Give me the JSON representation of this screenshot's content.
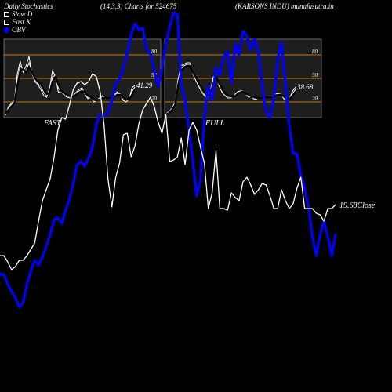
{
  "header": {
    "left": "Daily Stochastics",
    "center": "(14,3,3) Charts for 524675",
    "right": "(KARSONS INDU) munafasutra.in"
  },
  "legend": [
    {
      "label": "Slow  D",
      "marker": "box",
      "color": "#ffffff"
    },
    {
      "label": "Fast K",
      "marker": "box",
      "color": "#ffffff"
    },
    {
      "label": "OBV",
      "marker": "dot",
      "color": "#0000ff"
    }
  ],
  "colors": {
    "bg": "#000000",
    "panel": "#1e1e1e",
    "grid": "#c87800",
    "line": "#ffffff",
    "obv": "#0000ff"
  },
  "chart_data": [
    {
      "type": "line",
      "title": "FAST",
      "ylim": [
        0,
        100
      ],
      "y_ticks": [
        "80",
        "50",
        "20"
      ],
      "last_value_label": "41.29",
      "series": [
        {
          "values": [
            3,
            14,
            18,
            22,
            55,
            72,
            58,
            66,
            78,
            56,
            46,
            42,
            36,
            28,
            26,
            38,
            60,
            52,
            32,
            34,
            28,
            26,
            25,
            28,
            32,
            36,
            38,
            30,
            24,
            26,
            20,
            22,
            25,
            28,
            24,
            26,
            25,
            29,
            33,
            30,
            22,
            20,
            23,
            38,
            41
          ]
        },
        {
          "values": [
            4,
            12,
            16,
            20,
            48,
            66,
            62,
            60,
            70,
            58,
            48,
            44,
            40,
            32,
            28,
            34,
            52,
            54,
            38,
            32,
            30,
            28,
            26,
            27,
            30,
            34,
            36,
            32,
            26,
            25,
            22,
            22,
            24,
            26,
            25,
            25,
            26,
            28,
            31,
            30,
            25,
            22,
            23,
            33,
            39
          ]
        },
        {
          "values": [
            5,
            10,
            14,
            18,
            40,
            60,
            62,
            58,
            64,
            58,
            50,
            46,
            42,
            36,
            30,
            32,
            46,
            52,
            42,
            34,
            31,
            29,
            27,
            27,
            29,
            32,
            34,
            32,
            28,
            26,
            23,
            22,
            23,
            25,
            25,
            25,
            26,
            27,
            29,
            29,
            26,
            23,
            23,
            29,
            36
          ]
        }
      ]
    },
    {
      "type": "line",
      "title": "FULL",
      "ylim": [
        0,
        100
      ],
      "y_ticks": [
        "80",
        "50",
        "20"
      ],
      "last_value_label": "38.68",
      "series": [
        {
          "values": [
            5,
            8,
            12,
            20,
            48,
            66,
            68,
            70,
            70,
            56,
            48,
            40,
            33,
            28,
            24,
            34,
            52,
            54,
            40,
            32,
            28,
            25,
            25,
            28,
            32,
            34,
            34,
            31,
            26,
            27,
            23,
            24,
            26,
            26,
            26,
            27,
            27,
            30,
            31,
            30,
            24,
            22,
            25,
            34,
            39
          ]
        },
        {
          "values": [
            4,
            7,
            11,
            18,
            44,
            62,
            66,
            68,
            68,
            58,
            50,
            42,
            36,
            30,
            26,
            32,
            48,
            54,
            42,
            34,
            30,
            27,
            26,
            27,
            30,
            33,
            34,
            31,
            28,
            27,
            25,
            24,
            25,
            26,
            26,
            26,
            27,
            29,
            30,
            30,
            26,
            23,
            24,
            31,
            36
          ]
        },
        {
          "values": [
            4,
            6,
            10,
            16,
            40,
            58,
            64,
            66,
            66,
            58,
            52,
            44,
            38,
            32,
            28,
            30,
            44,
            52,
            44,
            36,
            31,
            28,
            27,
            27,
            29,
            32,
            33,
            31,
            29,
            27,
            26,
            25,
            25,
            26,
            26,
            26,
            26,
            28,
            29,
            29,
            27,
            24,
            24,
            28,
            33
          ]
        }
      ]
    },
    {
      "type": "line",
      "series": [
        {
          "name": "OBV",
          "color": "#0000ff",
          "values": [
            56,
            56,
            44,
            34,
            26,
            14,
            20,
            44,
            60,
            74,
            68,
            78,
            92,
            106,
            126,
            128,
            121,
            138,
            152,
            172,
            196,
            200,
            194,
            205,
            218,
            248,
            260,
            258,
            262,
            278,
            300,
            305,
            318,
            338,
            362,
            376,
            368,
            370,
            342,
            338,
            316,
            296,
            318,
            350,
            372,
            390,
            388,
            298,
            278,
            240,
            200,
            156,
            176,
            256,
            296,
            278,
            320,
            310,
            334,
            340,
            300,
            350,
            336,
            366,
            360,
            342,
            356,
            340,
            296,
            264,
            256,
            280,
            330,
            352,
            298,
            246,
            210,
            210,
            182,
            166,
            142,
            104,
            80,
            106,
            124,
            104,
            80,
            108
          ]
        },
        {
          "name": "Close",
          "color": "#ffffff",
          "values": [
            80,
            80,
            72,
            62,
            66,
            74,
            74,
            80,
            88,
            96,
            124,
            150,
            164,
            178,
            205,
            240,
            256,
            254,
            272,
            292,
            300,
            302,
            298,
            302,
            312,
            308,
            288,
            246,
            178,
            142,
            180,
            198,
            234,
            236,
            206,
            220,
            248,
            266,
            274,
            282,
            270,
            250,
            236,
            260,
            200,
            202,
            206,
            230,
            196,
            240,
            250,
            240,
            218,
            198,
            140,
            160,
            214,
            140,
            140,
            138,
            160,
            154,
            150,
            174,
            180,
            170,
            158,
            164,
            172,
            170,
            156,
            140,
            140,
            164,
            150,
            140,
            146,
            166,
            180,
            140,
            140,
            140,
            134,
            132,
            124,
            140,
            140,
            145
          ]
        }
      ],
      "last_value_label": "19.68Close"
    }
  ]
}
